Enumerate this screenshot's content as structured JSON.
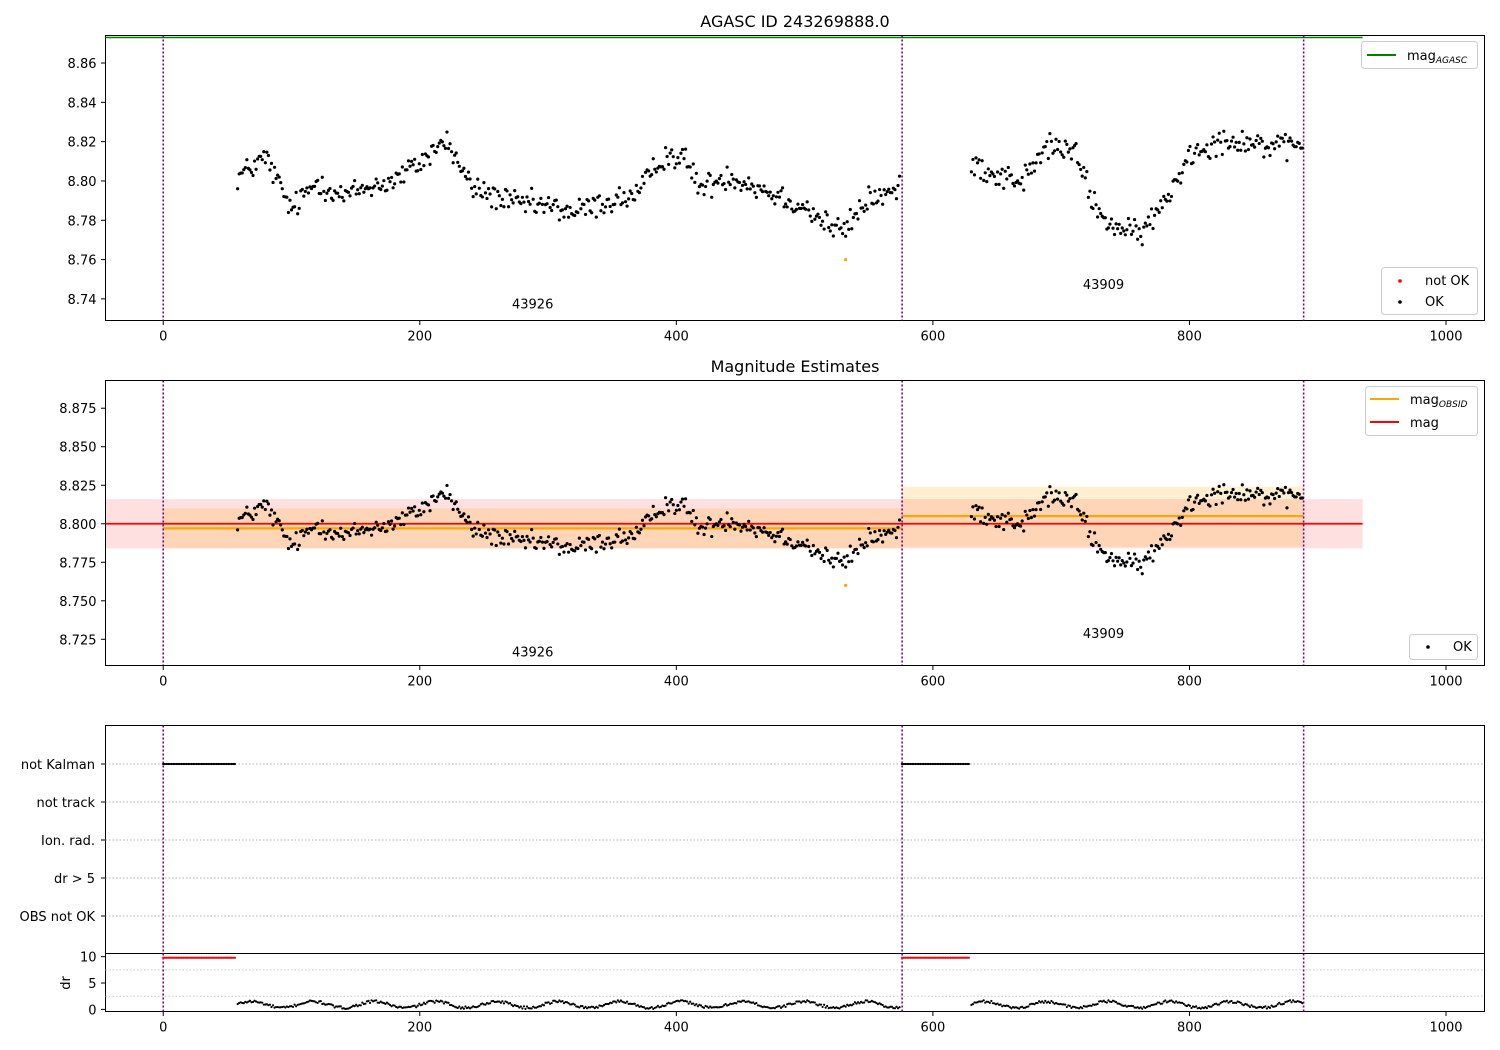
{
  "chart_data": [
    {
      "type": "scatter",
      "title": "AGASC ID 243269888.0",
      "xlim": [
        -45,
        1030
      ],
      "ylim": [
        8.729,
        8.874
      ],
      "xticks": [
        0,
        200,
        400,
        600,
        800,
        1000
      ],
      "yticks": [
        8.74,
        8.76,
        8.78,
        8.8,
        8.82,
        8.84,
        8.86
      ],
      "ytick_labels": [
        "8.74",
        "8.76",
        "8.78",
        "8.80",
        "8.82",
        "8.84",
        "8.86"
      ],
      "mag_agasc": 8.873,
      "obsid_boundaries": [
        0,
        576,
        889
      ],
      "annotations": [
        {
          "text": "43926",
          "x": 288,
          "y": 8.735
        },
        {
          "text": "43909",
          "x": 733,
          "y": 8.745
        }
      ],
      "legend_lines": {
        "position": "upper right",
        "entries": [
          {
            "name": "mag",
            "sub": "AGASC",
            "color": "#008000"
          }
        ]
      },
      "legend_points": {
        "position": "lower right",
        "entries": [
          {
            "name": "not OK",
            "color": "#ff0000"
          },
          {
            "name": "OK",
            "color": "#000000"
          }
        ]
      },
      "series": [
        {
          "name": "OK",
          "color": "#000000",
          "segments": [
            {
              "x_start": 58,
              "x_end": 575,
              "step": 1.2,
              "anchors": [
                [
                  58,
                  8.802
                ],
                [
                  80,
                  8.812
                ],
                [
                  100,
                  8.785
                ],
                [
                  120,
                  8.8
                ],
                [
                  140,
                  8.792
                ],
                [
                  160,
                  8.797
                ],
                [
                  180,
                  8.8
                ],
                [
                  200,
                  8.809
                ],
                [
                  220,
                  8.821
                ],
                [
                  240,
                  8.797
                ],
                [
                  270,
                  8.789
                ],
                [
                  300,
                  8.787
                ],
                [
                  320,
                  8.784
                ],
                [
                  345,
                  8.789
                ],
                [
                  370,
                  8.793
                ],
                [
                  390,
                  8.813
                ],
                [
                  405,
                  8.812
                ],
                [
                  420,
                  8.796
                ],
                [
                  440,
                  8.803
                ],
                [
                  470,
                  8.795
                ],
                [
                  500,
                  8.787
                ],
                [
                  515,
                  8.779
                ],
                [
                  530,
                  8.774
                ],
                [
                  550,
                  8.791
                ],
                [
                  575,
                  8.795
                ]
              ]
            },
            {
              "x_start": 630,
              "x_end": 889,
              "step": 1.2,
              "anchors": [
                [
                  630,
                  8.81
                ],
                [
                  650,
                  8.803
                ],
                [
                  670,
                  8.8
                ],
                [
                  690,
                  8.818
                ],
                [
                  710,
                  8.815
                ],
                [
                  730,
                  8.782
                ],
                [
                  745,
                  8.776
                ],
                [
                  760,
                  8.772
                ],
                [
                  780,
                  8.788
                ],
                [
                  800,
                  8.814
                ],
                [
                  820,
                  8.82
                ],
                [
                  840,
                  8.821
                ],
                [
                  860,
                  8.818
                ],
                [
                  875,
                  8.816
                ],
                [
                  889,
                  8.82
                ]
              ]
            }
          ],
          "noise": 0.0065
        },
        {
          "name": "not OK",
          "color": "#ff0000",
          "points": []
        },
        {
          "name": "outlier",
          "color": "#ffa500",
          "points": [
            [
              532,
              8.76
            ]
          ]
        }
      ]
    },
    {
      "type": "scatter",
      "title": "Magnitude Estimates",
      "xlim": [
        -45,
        1030
      ],
      "ylim": [
        8.708,
        8.893
      ],
      "xticks": [
        0,
        200,
        400,
        600,
        800,
        1000
      ],
      "yticks": [
        8.725,
        8.75,
        8.775,
        8.8,
        8.825,
        8.85,
        8.875
      ],
      "ytick_labels": [
        "8.725",
        "8.750",
        "8.775",
        "8.800",
        "8.825",
        "8.850",
        "8.875"
      ],
      "mag": 8.8,
      "mag_band": [
        8.784,
        8.816
      ],
      "mag_xrange": [
        -45,
        935
      ],
      "mag_obsid": [
        {
          "x_range": [
            0,
            576
          ],
          "value": 8.797,
          "band": [
            8.784,
            8.81
          ]
        },
        {
          "x_range": [
            576,
            889
          ],
          "value": 8.805,
          "band": [
            8.785,
            8.824
          ]
        }
      ],
      "obsid_boundaries": [
        0,
        576,
        889
      ],
      "annotations": [
        {
          "text": "43926",
          "x": 288,
          "y": 8.714
        },
        {
          "text": "43909",
          "x": 733,
          "y": 8.726
        }
      ],
      "legend_lines": {
        "position": "upper right",
        "entries": [
          {
            "name": "mag",
            "sub": "OBSID",
            "color": "#ffa500"
          },
          {
            "name": "mag",
            "sub": "",
            "color": "#ff0000"
          }
        ]
      },
      "legend_points": {
        "position": "lower right",
        "entries": [
          {
            "name": "OK",
            "color": "#000000"
          }
        ]
      }
    },
    {
      "type": "scatter",
      "title": "",
      "xlim": [
        -45,
        1030
      ],
      "flag_labels": [
        "not Kalman",
        "not track",
        "Ion. rad.",
        "dr > 5",
        "OBS not OK"
      ],
      "flag_ranges": {
        "not Kalman": [
          [
            0,
            57
          ],
          [
            576,
            628
          ]
        ],
        "not track": [],
        "Ion. rad.": [],
        "dr > 5": [],
        "OBS not OK": []
      },
      "obsid_boundaries": [
        0,
        576,
        889
      ]
    },
    {
      "type": "scatter",
      "title": "",
      "ylabel": "dr",
      "xlim": [
        -45,
        1030
      ],
      "ylim": [
        -0.4,
        10.6
      ],
      "xticks": [
        0,
        200,
        400,
        600,
        800,
        1000
      ],
      "yticks": [
        0,
        5,
        10
      ],
      "ytick_labels": [
        "0",
        "5",
        "10"
      ],
      "clipped_value": 9.8,
      "clipped_ranges": [
        [
          0,
          57
        ],
        [
          576,
          628
        ]
      ],
      "dr_segments": [
        [
          58,
          575
        ],
        [
          630,
          889
        ]
      ],
      "dr_mean": 0.9,
      "obsid_boundaries": [
        0,
        576,
        889
      ]
    }
  ]
}
